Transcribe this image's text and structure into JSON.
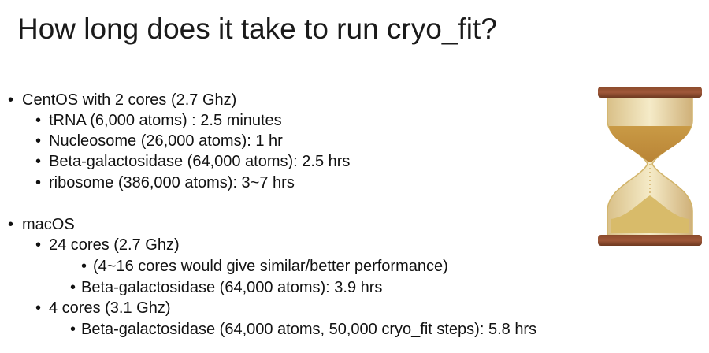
{
  "slide": {
    "title": "How long does it take to run cryo_fit?",
    "bullets": [
      {
        "level": 1,
        "text": "CentOS with 2 cores (2.7 Ghz)"
      },
      {
        "level": 2,
        "text": "tRNA (6,000 atoms) :  2.5 minutes"
      },
      {
        "level": 2,
        "text": "Nucleosome (26,000 atoms): 1 hr"
      },
      {
        "level": 2,
        "text": "Beta-galactosidase (64,000 atoms): 2.5 hrs"
      },
      {
        "level": 2,
        "text": "ribosome (386,000 atoms): 3~7 hrs"
      },
      {
        "level": 1,
        "text": "macOS"
      },
      {
        "level": 2,
        "text": "24 cores (2.7 Ghz)"
      },
      {
        "level": 4,
        "text": "(4~16 cores would give similar/better performance)"
      },
      {
        "level": 3,
        "text": "Beta-galactosidase (64,000 atoms): 3.9 hrs"
      },
      {
        "level": 2,
        "text": "4 cores (3.1 Ghz)"
      },
      {
        "level": 3,
        "text": "Beta-galactosidase (64,000 atoms, 50,000 cryo_fit steps): 5.8 hrs"
      }
    ],
    "bullet_glyph": "•",
    "image": "hourglass-icon"
  }
}
